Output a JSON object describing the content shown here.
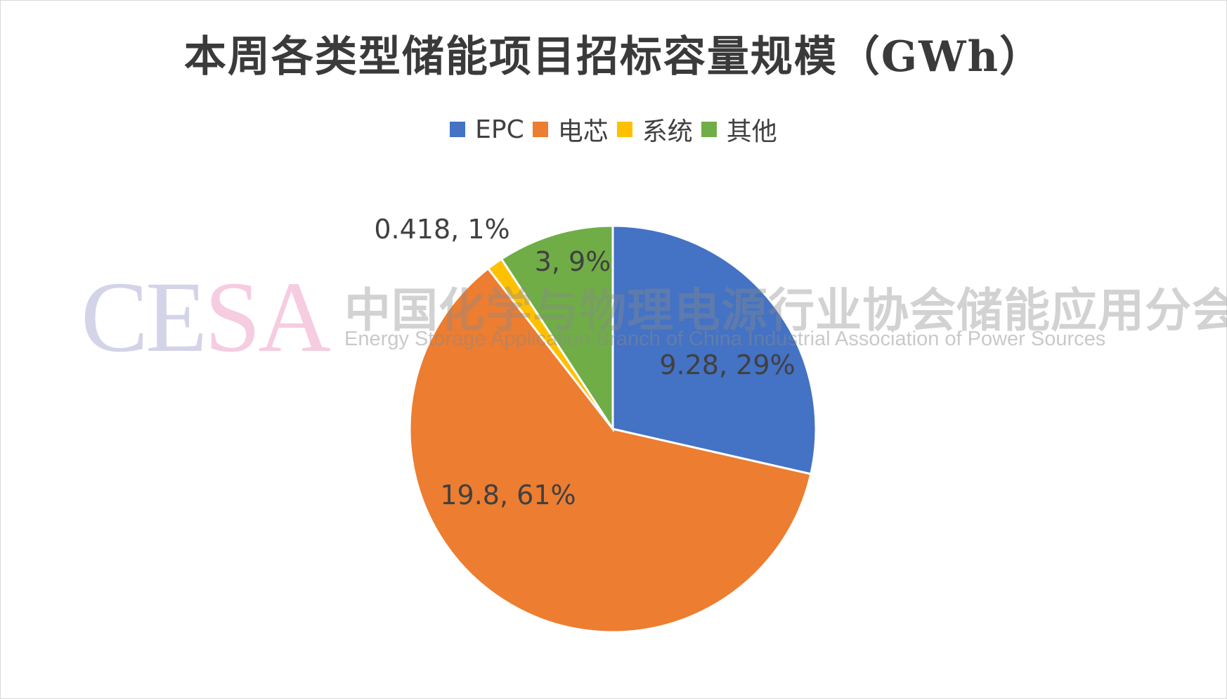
{
  "chart_data": {
    "type": "pie",
    "title": "本周各类型储能项目招标容量规模（GWh）",
    "categories": [
      "EPC",
      "电芯",
      "系统",
      "其他"
    ],
    "values": [
      9.28,
      19.8,
      0.418,
      3
    ],
    "percent_labels": [
      "29%",
      "61%",
      "1%",
      "9%"
    ],
    "data_labels": [
      "9.28, 29%",
      "19.8, 61%",
      "0.418, 1%",
      "3, 9%"
    ],
    "colors": [
      "#4472C4",
      "#ED7D31",
      "#FFC000",
      "#70AD47"
    ],
    "legend_position": "top",
    "start_angle_deg": 0,
    "direction": "clockwise"
  },
  "legend": {
    "items": [
      {
        "label": "EPC",
        "color": "#4472C4"
      },
      {
        "label": "电芯",
        "color": "#ED7D31"
      },
      {
        "label": "系统",
        "color": "#FFC000"
      },
      {
        "label": "其他",
        "color": "#70AD47"
      }
    ]
  },
  "watermark": {
    "logo_letters": [
      "C",
      "E",
      "S",
      "A"
    ],
    "cn_text": "中国化学与物理电源行业协会储能应用分会",
    "en_text": "Energy Storage Application Branch of China Industrial Association of Power Sources"
  }
}
